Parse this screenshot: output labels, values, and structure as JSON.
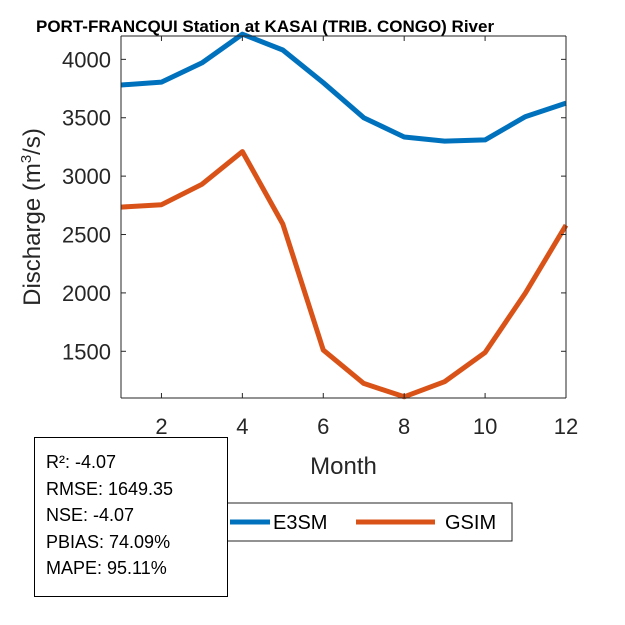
{
  "chart_data": {
    "type": "line",
    "title": "PORT-FRANCQUI  Station at  KASAI (TRIB. CONGO)  River",
    "xlabel": "Month",
    "ylabel_main": "Discharge (m",
    "ylabel_sup": "3",
    "ylabel_end": "/s)",
    "xlim": [
      1,
      12
    ],
    "ylim": [
      1100,
      4200
    ],
    "xticks": [
      2,
      4,
      6,
      8,
      10,
      12
    ],
    "yticks": [
      1500,
      2000,
      2500,
      3000,
      3500,
      4000
    ],
    "grid": false,
    "legend_placement": "bottom-outside",
    "x": [
      1,
      2,
      3,
      4,
      5,
      6,
      7,
      8,
      9,
      10,
      11,
      12
    ],
    "series": [
      {
        "name": "E3SM",
        "color": "#0072BD",
        "values": [
          3780,
          3805,
          3970,
          4215,
          4080,
          3800,
          3500,
          3335,
          3300,
          3310,
          3510,
          3625
        ]
      },
      {
        "name": "GSIM",
        "color": "#D95319",
        "values": [
          2735,
          2755,
          2930,
          3210,
          2590,
          1510,
          1225,
          1110,
          1240,
          1490,
          2000,
          2580
        ]
      }
    ]
  },
  "stats": {
    "r2": "R²: -4.07",
    "rmse": "RMSE: 1649.35",
    "nse": "NSE: -4.07",
    "pbias": "PBIAS: 74.09%",
    "mape": "MAPE: 95.11%"
  }
}
